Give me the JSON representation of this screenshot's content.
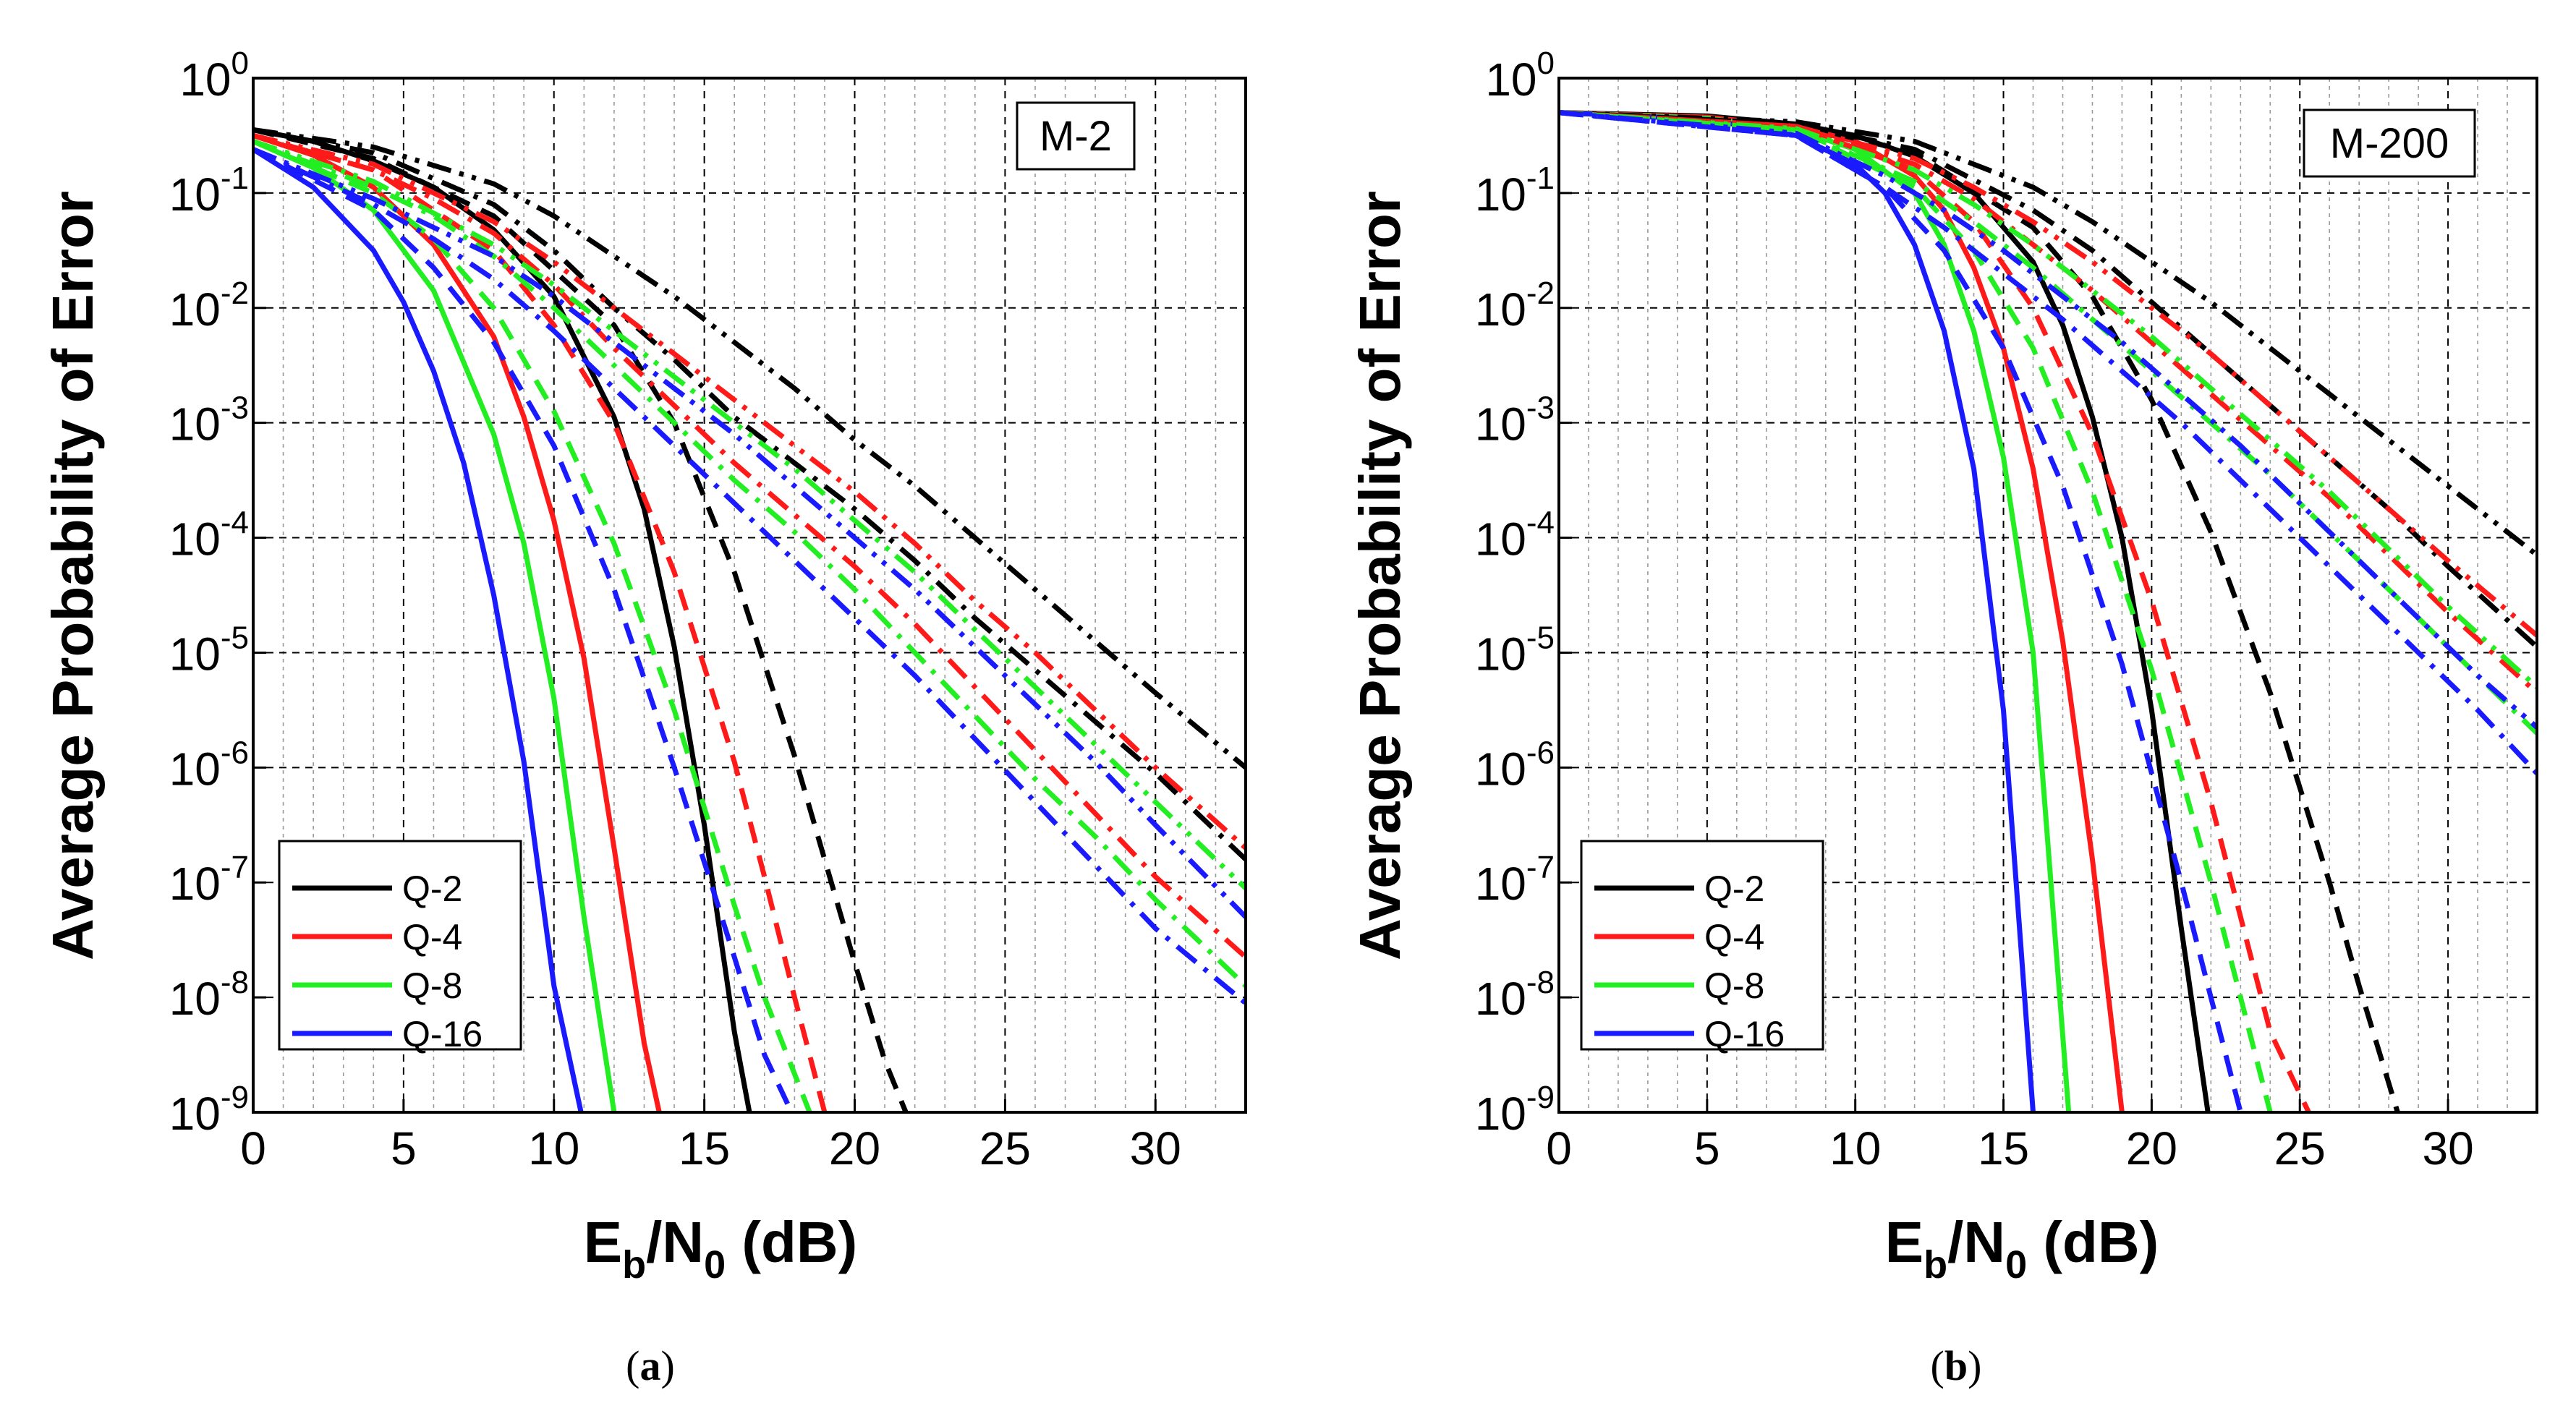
{
  "colors": {
    "Q-2": "#000000",
    "Q-4": "#ff1a1a",
    "Q-8": "#22ee22",
    "Q-16": "#1a1aff"
  },
  "line_styles": [
    "solid",
    "dash",
    "dashdot",
    "dashdotdot"
  ],
  "chart_data": [
    {
      "id": "a",
      "type": "line",
      "caption_letter": "a",
      "annotation": "M-2",
      "xlabel": {
        "main": "E",
        "sub1": "b",
        "mid": "/N",
        "sub2": "0",
        "tail": " (dB)"
      },
      "ylabel": "Average Probability of Error",
      "xlim": [
        0,
        33
      ],
      "ylim_exp": [
        -9,
        0
      ],
      "xticks": [
        0,
        5,
        10,
        15,
        20,
        25,
        30
      ],
      "yticks_exp": [
        0,
        -1,
        -2,
        -3,
        -4,
        -5,
        -6,
        -7,
        -8,
        -9
      ],
      "ytick_base": "10",
      "legend": [
        "Q-2",
        "Q-4",
        "Q-8",
        "Q-16"
      ],
      "series": [
        {
          "name": "Q-2",
          "style": "solid",
          "x": [
            0,
            2,
            4,
            6,
            8,
            10,
            12,
            13,
            14,
            15,
            16,
            16.5
          ],
          "y_exp": [
            -0.45,
            -0.55,
            -0.72,
            -0.95,
            -1.32,
            -1.9,
            -2.95,
            -3.75,
            -4.95,
            -6.5,
            -8.3,
            -9
          ]
        },
        {
          "name": "Q-4",
          "style": "solid",
          "x": [
            0,
            2,
            4,
            6,
            8,
            9,
            10,
            11,
            12,
            13,
            13.5
          ],
          "y_exp": [
            -0.5,
            -0.67,
            -0.95,
            -1.45,
            -2.25,
            -2.95,
            -3.85,
            -5.05,
            -6.7,
            -8.4,
            -9
          ]
        },
        {
          "name": "Q-8",
          "style": "solid",
          "x": [
            0,
            2,
            4,
            6,
            8,
            9,
            10,
            11,
            12
          ],
          "y_exp": [
            -0.55,
            -0.78,
            -1.15,
            -1.85,
            -3.1,
            -4.05,
            -5.4,
            -7.3,
            -9
          ]
        },
        {
          "name": "Q-16",
          "style": "solid",
          "x": [
            0,
            2,
            4,
            5,
            6,
            7,
            8,
            9,
            10,
            10.9
          ],
          "y_exp": [
            -0.62,
            -0.95,
            -1.5,
            -1.95,
            -2.55,
            -3.35,
            -4.5,
            -5.95,
            -7.9,
            -9
          ]
        },
        {
          "name": "Q-2",
          "style": "dash",
          "x": [
            0,
            4,
            8,
            12,
            14,
            16,
            18,
            20,
            21,
            21.7
          ],
          "y_exp": [
            -0.45,
            -0.7,
            -1.2,
            -2.15,
            -3.0,
            -4.3,
            -5.9,
            -7.7,
            -8.55,
            -9
          ]
        },
        {
          "name": "Q-4",
          "style": "dash",
          "x": [
            0,
            4,
            8,
            10,
            12,
            14,
            16,
            17,
            18,
            19
          ],
          "y_exp": [
            -0.5,
            -0.8,
            -1.5,
            -2.15,
            -3.0,
            -4.3,
            -5.95,
            -6.95,
            -8.0,
            -9
          ]
        },
        {
          "name": "Q-8",
          "style": "dash",
          "x": [
            0,
            4,
            6,
            8,
            10,
            12,
            14,
            16,
            17,
            18.5
          ],
          "y_exp": [
            -0.55,
            -1.0,
            -1.4,
            -2.0,
            -2.9,
            -4.05,
            -5.5,
            -7.2,
            -8.0,
            -9
          ]
        },
        {
          "name": "Q-16",
          "style": "dash",
          "x": [
            0,
            4,
            6,
            8,
            10,
            12,
            14,
            16,
            17,
            17.9
          ],
          "y_exp": [
            -0.62,
            -1.15,
            -1.65,
            -2.3,
            -3.2,
            -4.45,
            -6.0,
            -7.65,
            -8.5,
            -9
          ]
        },
        {
          "name": "Q-2",
          "style": "dashdot",
          "x": [
            0,
            4,
            8,
            10,
            12,
            14,
            16,
            18,
            20,
            22,
            24,
            26,
            28,
            30,
            32,
            33
          ],
          "y_exp": [
            -0.45,
            -0.65,
            -1.1,
            -1.5,
            -2.0,
            -2.45,
            -2.95,
            -3.35,
            -3.75,
            -4.2,
            -4.7,
            -5.15,
            -5.6,
            -6.05,
            -6.55,
            -6.8
          ]
        },
        {
          "name": "Q-4",
          "style": "dashdot",
          "x": [
            0,
            4,
            6,
            8,
            10,
            12,
            14,
            16,
            18,
            20,
            22,
            24,
            26,
            28,
            30,
            33
          ],
          "y_exp": [
            -0.5,
            -0.8,
            -1.05,
            -1.35,
            -1.8,
            -2.35,
            -2.85,
            -3.35,
            -3.8,
            -4.25,
            -4.75,
            -5.3,
            -5.85,
            -6.4,
            -6.95,
            -7.65
          ]
        },
        {
          "name": "Q-8",
          "style": "dashdot",
          "x": [
            0,
            4,
            6,
            8,
            10,
            12,
            14,
            16,
            18,
            20,
            22,
            24,
            26,
            28,
            30,
            33
          ],
          "y_exp": [
            -0.55,
            -0.95,
            -1.2,
            -1.55,
            -2.0,
            -2.5,
            -3.0,
            -3.5,
            -3.95,
            -4.45,
            -5.0,
            -5.55,
            -6.1,
            -6.6,
            -7.15,
            -7.9
          ]
        },
        {
          "name": "Q-16",
          "style": "dashdot",
          "x": [
            0,
            4,
            6,
            8,
            10,
            12,
            14,
            16,
            18,
            20,
            22,
            24,
            26,
            28,
            30,
            33
          ],
          "y_exp": [
            -0.62,
            -1.1,
            -1.4,
            -1.75,
            -2.2,
            -2.7,
            -3.2,
            -3.7,
            -4.2,
            -4.7,
            -5.2,
            -5.75,
            -6.3,
            -6.85,
            -7.4,
            -8.05
          ]
        },
        {
          "name": "Q-2",
          "style": "dashdotdot",
          "x": [
            0,
            4,
            8,
            10,
            12,
            14,
            16,
            18,
            20,
            22,
            24,
            26,
            28,
            30,
            33
          ],
          "y_exp": [
            -0.45,
            -0.6,
            -0.92,
            -1.2,
            -1.55,
            -1.9,
            -2.3,
            -2.7,
            -3.15,
            -3.55,
            -4.0,
            -4.45,
            -4.9,
            -5.35,
            -6.0
          ]
        },
        {
          "name": "Q-4",
          "style": "dashdotdot",
          "x": [
            0,
            4,
            8,
            10,
            12,
            14,
            16,
            18,
            20,
            22,
            24,
            26,
            28,
            30,
            33
          ],
          "y_exp": [
            -0.5,
            -0.75,
            -1.25,
            -1.6,
            -2.0,
            -2.4,
            -2.8,
            -3.2,
            -3.6,
            -4.05,
            -4.55,
            -5.0,
            -5.5,
            -6.0,
            -6.7
          ]
        },
        {
          "name": "Q-8",
          "style": "dashdotdot",
          "x": [
            0,
            4,
            8,
            10,
            12,
            14,
            16,
            18,
            20,
            22,
            24,
            26,
            28,
            30,
            33
          ],
          "y_exp": [
            -0.55,
            -0.9,
            -1.45,
            -1.8,
            -2.2,
            -2.6,
            -3.0,
            -3.4,
            -3.85,
            -4.3,
            -4.8,
            -5.3,
            -5.8,
            -6.3,
            -7.05
          ]
        },
        {
          "name": "Q-16",
          "style": "dashdotdot",
          "x": [
            0,
            4,
            8,
            10,
            12,
            14,
            16,
            18,
            20,
            22,
            24,
            26,
            28,
            30,
            33
          ],
          "y_exp": [
            -0.62,
            -1.05,
            -1.55,
            -1.9,
            -2.3,
            -2.7,
            -3.1,
            -3.55,
            -4.0,
            -4.45,
            -4.95,
            -5.45,
            -5.95,
            -6.5,
            -7.3
          ]
        }
      ]
    },
    {
      "id": "b",
      "type": "line",
      "caption_letter": "b",
      "annotation": "M-200",
      "xlabel": {
        "main": "E",
        "sub1": "b",
        "mid": "/N",
        "sub2": "0",
        "tail": " (dB)"
      },
      "ylabel": "Average Probability of Error",
      "xlim": [
        0,
        33
      ],
      "ylim_exp": [
        -9,
        0
      ],
      "xticks": [
        0,
        5,
        10,
        15,
        20,
        25,
        30
      ],
      "yticks_exp": [
        0,
        -1,
        -2,
        -3,
        -4,
        -5,
        -6,
        -7,
        -8,
        -9
      ],
      "ytick_base": "10",
      "legend": [
        "Q-2",
        "Q-4",
        "Q-8",
        "Q-16"
      ],
      "series": [
        {
          "name": "Q-2",
          "style": "solid",
          "x": [
            0,
            5,
            8,
            10,
            12,
            14,
            16,
            17,
            18,
            19,
            20,
            21,
            21.9
          ],
          "y_exp": [
            -0.3,
            -0.33,
            -0.4,
            -0.5,
            -0.68,
            -1.0,
            -1.6,
            -2.15,
            -2.95,
            -4.0,
            -5.5,
            -7.4,
            -9
          ]
        },
        {
          "name": "Q-4",
          "style": "solid",
          "x": [
            0,
            5,
            8,
            10,
            12,
            13,
            14,
            15,
            16,
            17,
            18,
            19
          ],
          "y_exp": [
            -0.3,
            -0.34,
            -0.42,
            -0.55,
            -0.85,
            -1.15,
            -1.65,
            -2.35,
            -3.4,
            -4.9,
            -6.8,
            -9
          ]
        },
        {
          "name": "Q-8",
          "style": "solid",
          "x": [
            0,
            5,
            8,
            10,
            12,
            13,
            14,
            15,
            16,
            17.2
          ],
          "y_exp": [
            -0.3,
            -0.35,
            -0.45,
            -0.62,
            -1.0,
            -1.45,
            -2.2,
            -3.3,
            -5.0,
            -9
          ]
        },
        {
          "name": "Q-16",
          "style": "solid",
          "x": [
            0,
            5,
            8,
            10,
            11,
            12,
            13,
            14,
            15,
            16
          ],
          "y_exp": [
            -0.3,
            -0.36,
            -0.5,
            -0.75,
            -1.0,
            -1.45,
            -2.2,
            -3.4,
            -5.5,
            -9
          ]
        },
        {
          "name": "Q-2",
          "style": "dash",
          "x": [
            0,
            8,
            12,
            16,
            18,
            20,
            22,
            24,
            26,
            27,
            28.3
          ],
          "y_exp": [
            -0.3,
            -0.4,
            -0.65,
            -1.3,
            -1.9,
            -2.8,
            -3.95,
            -5.35,
            -7.0,
            -7.9,
            -9
          ]
        },
        {
          "name": "Q-4",
          "style": "dash",
          "x": [
            0,
            8,
            12,
            14,
            16,
            18,
            20,
            22,
            24,
            25.3
          ],
          "y_exp": [
            -0.3,
            -0.42,
            -0.8,
            -1.25,
            -2.0,
            -3.1,
            -4.55,
            -6.3,
            -8.3,
            -9
          ]
        },
        {
          "name": "Q-8",
          "style": "dash",
          "x": [
            0,
            8,
            12,
            14,
            16,
            18,
            20,
            22,
            23,
            24
          ],
          "y_exp": [
            -0.3,
            -0.45,
            -0.95,
            -1.5,
            -2.35,
            -3.6,
            -5.15,
            -7.0,
            -8.0,
            -9
          ]
        },
        {
          "name": "Q-16",
          "style": "dash",
          "x": [
            0,
            8,
            11,
            13,
            15,
            17,
            19,
            21,
            22,
            23
          ],
          "y_exp": [
            -0.3,
            -0.5,
            -0.95,
            -1.5,
            -2.35,
            -3.55,
            -5.1,
            -7.0,
            -8.0,
            -9
          ]
        },
        {
          "name": "Q-2",
          "style": "dashdot",
          "x": [
            0,
            8,
            12,
            16,
            18,
            20,
            22,
            24,
            26,
            28,
            30,
            33
          ],
          "y_exp": [
            -0.3,
            -0.4,
            -0.62,
            -1.15,
            -1.5,
            -1.95,
            -2.4,
            -2.85,
            -3.3,
            -3.75,
            -4.25,
            -4.95
          ]
        },
        {
          "name": "Q-4",
          "style": "dashdot",
          "x": [
            0,
            8,
            12,
            14,
            16,
            18,
            20,
            22,
            24,
            26,
            28,
            30,
            33
          ],
          "y_exp": [
            -0.3,
            -0.42,
            -0.75,
            -1.05,
            -1.45,
            -1.85,
            -2.3,
            -2.75,
            -3.2,
            -3.65,
            -4.15,
            -4.65,
            -5.35
          ]
        },
        {
          "name": "Q-8",
          "style": "dashdot",
          "x": [
            0,
            8,
            12,
            14,
            16,
            18,
            20,
            22,
            24,
            26,
            28,
            30,
            33
          ],
          "y_exp": [
            -0.3,
            -0.45,
            -0.9,
            -1.25,
            -1.65,
            -2.1,
            -2.55,
            -3.0,
            -3.45,
            -3.95,
            -4.45,
            -4.95,
            -5.7
          ]
        },
        {
          "name": "Q-16",
          "style": "dashdot",
          "x": [
            0,
            8,
            11,
            13,
            15,
            17,
            19,
            21,
            23,
            25,
            27,
            29,
            31,
            33
          ],
          "y_exp": [
            -0.3,
            -0.5,
            -0.95,
            -1.3,
            -1.7,
            -2.1,
            -2.55,
            -3.0,
            -3.5,
            -4.0,
            -4.5,
            -5.0,
            -5.5,
            -6.05
          ]
        },
        {
          "name": "Q-2",
          "style": "dashdotdot",
          "x": [
            0,
            8,
            12,
            16,
            18,
            20,
            22,
            24,
            26,
            28,
            30,
            33
          ],
          "y_exp": [
            -0.3,
            -0.38,
            -0.55,
            -0.95,
            -1.25,
            -1.6,
            -1.95,
            -2.35,
            -2.75,
            -3.15,
            -3.55,
            -4.15
          ]
        },
        {
          "name": "Q-4",
          "style": "dashdotdot",
          "x": [
            0,
            8,
            12,
            14,
            16,
            18,
            20,
            22,
            24,
            26,
            28,
            30,
            33
          ],
          "y_exp": [
            -0.3,
            -0.42,
            -0.7,
            -0.95,
            -1.25,
            -1.6,
            -2.0,
            -2.4,
            -2.85,
            -3.3,
            -3.75,
            -4.2,
            -4.85
          ]
        },
        {
          "name": "Q-8",
          "style": "dashdotdot",
          "x": [
            0,
            8,
            12,
            14,
            16,
            18,
            20,
            22,
            24,
            26,
            28,
            30,
            33
          ],
          "y_exp": [
            -0.3,
            -0.44,
            -0.8,
            -1.1,
            -1.45,
            -1.85,
            -2.25,
            -2.7,
            -3.15,
            -3.6,
            -4.1,
            -4.6,
            -5.3
          ]
        },
        {
          "name": "Q-16",
          "style": "dashdotdot",
          "x": [
            0,
            8,
            11,
            13,
            15,
            17,
            19,
            21,
            23,
            25,
            27,
            29,
            31,
            33
          ],
          "y_exp": [
            -0.3,
            -0.48,
            -0.85,
            -1.15,
            -1.5,
            -1.9,
            -2.3,
            -2.75,
            -3.2,
            -3.7,
            -4.2,
            -4.7,
            -5.2,
            -5.65
          ]
        }
      ]
    }
  ]
}
